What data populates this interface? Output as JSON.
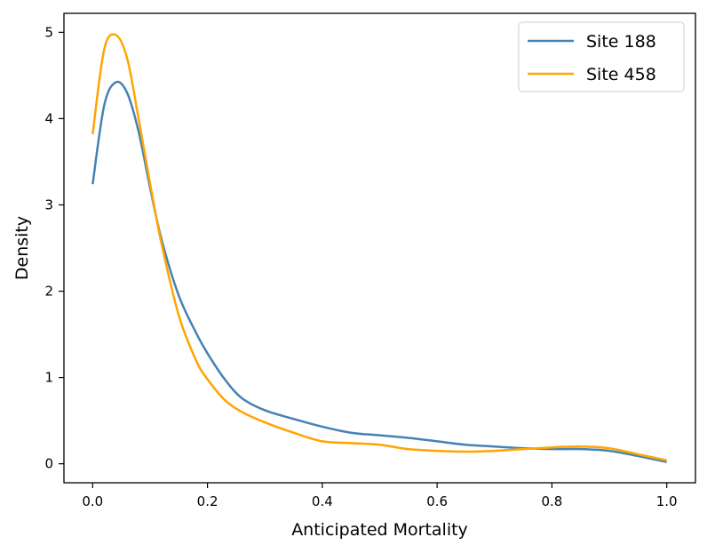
{
  "chart_data": {
    "type": "line",
    "title": "",
    "xlabel": "Anticipated Mortality",
    "ylabel": "Density",
    "xlim": [
      -0.05,
      1.05
    ],
    "ylim": [
      -0.22,
      5.22
    ],
    "x_ticks": [
      0.0,
      0.2,
      0.4,
      0.6,
      0.8,
      1.0
    ],
    "x_tick_labels": [
      "0.0",
      "0.2",
      "0.4",
      "0.6",
      "0.8",
      "1.0"
    ],
    "y_ticks": [
      0,
      1,
      2,
      3,
      4,
      5
    ],
    "y_tick_labels": [
      "0",
      "1",
      "2",
      "3",
      "4",
      "5"
    ],
    "grid": false,
    "legend_position": "top-right",
    "series": [
      {
        "name": "Site 188",
        "color": "#4682b4",
        "x": [
          0.0,
          0.02,
          0.04,
          0.06,
          0.08,
          0.1,
          0.12,
          0.15,
          0.18,
          0.2,
          0.23,
          0.26,
          0.3,
          0.35,
          0.4,
          0.45,
          0.5,
          0.55,
          0.6,
          0.65,
          0.7,
          0.75,
          0.8,
          0.85,
          0.9,
          0.95,
          1.0
        ],
        "values": [
          3.24,
          4.15,
          4.42,
          4.3,
          3.85,
          3.2,
          2.6,
          1.95,
          1.52,
          1.28,
          0.98,
          0.76,
          0.62,
          0.52,
          0.43,
          0.36,
          0.33,
          0.3,
          0.26,
          0.22,
          0.2,
          0.18,
          0.17,
          0.17,
          0.15,
          0.09,
          0.02
        ]
      },
      {
        "name": "Site 458",
        "color": "#ffa500",
        "x": [
          0.0,
          0.02,
          0.04,
          0.06,
          0.08,
          0.1,
          0.12,
          0.15,
          0.18,
          0.2,
          0.23,
          0.26,
          0.3,
          0.35,
          0.4,
          0.45,
          0.5,
          0.55,
          0.6,
          0.65,
          0.7,
          0.75,
          0.8,
          0.85,
          0.9,
          0.95,
          1.0
        ],
        "values": [
          3.82,
          4.8,
          4.97,
          4.7,
          4.0,
          3.25,
          2.55,
          1.72,
          1.2,
          0.98,
          0.74,
          0.6,
          0.48,
          0.36,
          0.26,
          0.24,
          0.22,
          0.17,
          0.15,
          0.14,
          0.15,
          0.17,
          0.19,
          0.2,
          0.18,
          0.11,
          0.04
        ]
      }
    ]
  }
}
